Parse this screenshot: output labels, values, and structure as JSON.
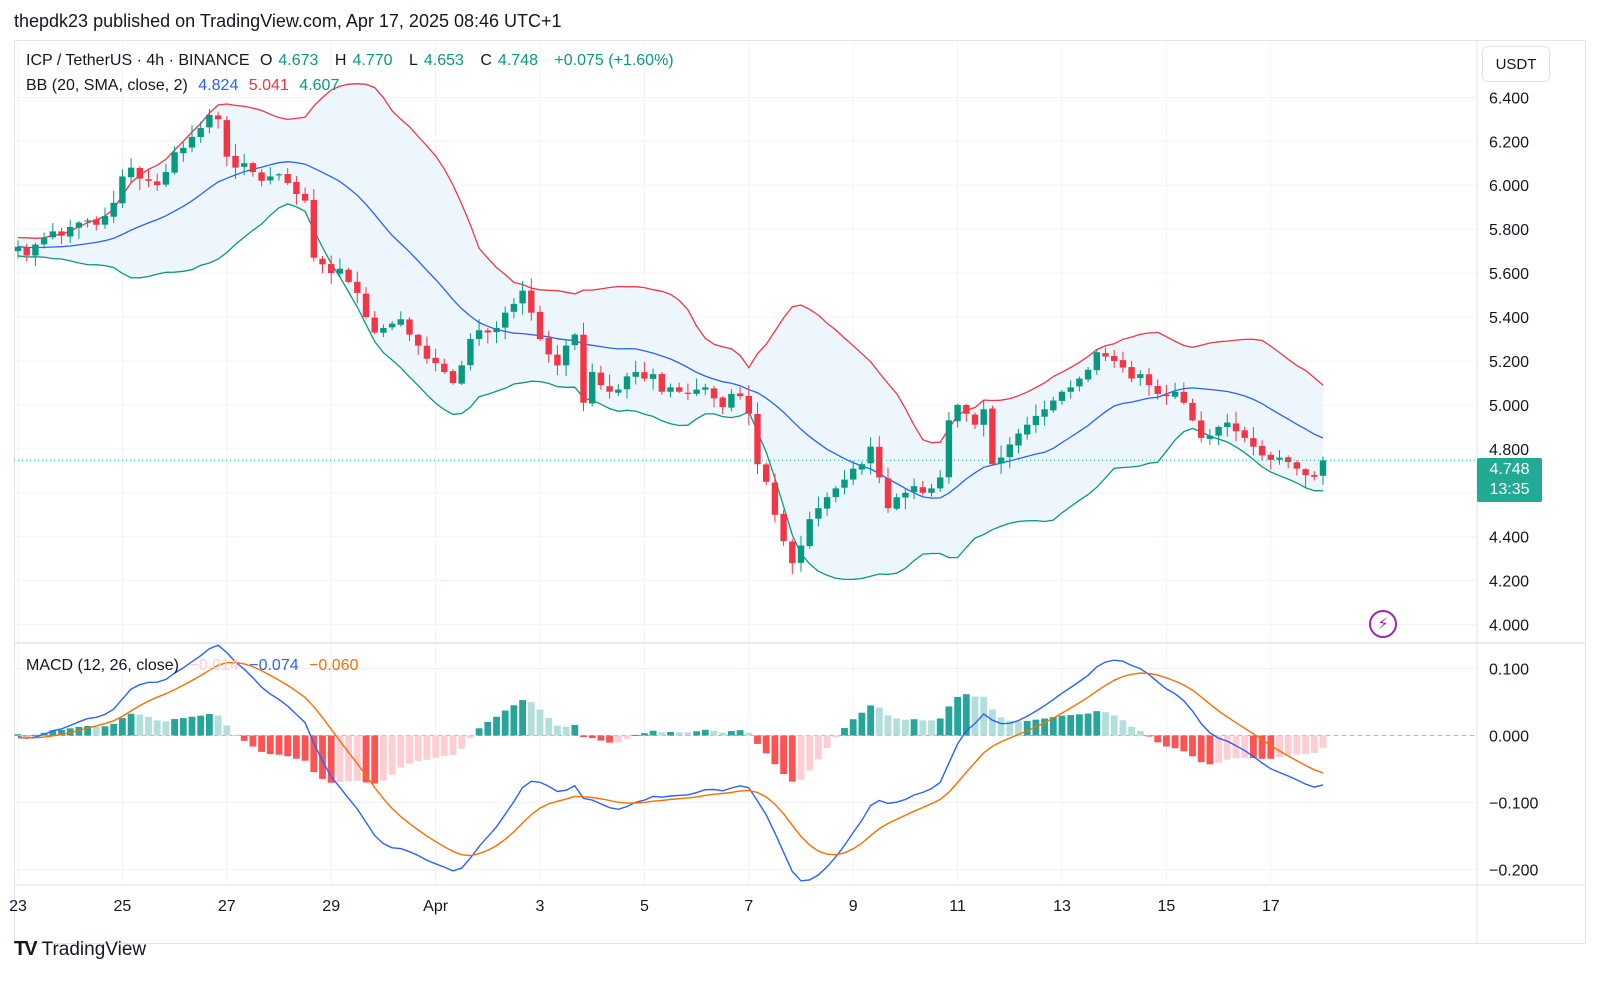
{
  "header": {
    "credit": "thepdk23 published on TradingView.com, Apr 17, 2025 08:46 UTC+1"
  },
  "legend": {
    "symbol": "ICP / TetherUS · 4h · BINANCE",
    "open_label": "O",
    "open": "4.673",
    "high_label": "H",
    "high": "4.770",
    "low_label": "L",
    "low": "4.653",
    "close_label": "C",
    "close": "4.748",
    "change": "+0.075 (+1.60%)",
    "bb_title": "BB (20, SMA, close, 2)",
    "bb_basis": "4.824",
    "bb_upper": "5.041",
    "bb_lower": "4.607",
    "macd_title": "MACD (12, 26, close)",
    "macd_hist": "−0.014",
    "macd_line": "−0.074",
    "macd_signal": "−0.060"
  },
  "price_scale": {
    "unit": "USDT",
    "last_price": "4.748",
    "countdown": "13:35"
  },
  "footer": {
    "brand": "TradingView",
    "logo_mark": "TV"
  },
  "icons": {
    "alert": "lightning-bolt-icon"
  },
  "colors": {
    "up": "#089981",
    "down": "#f23645",
    "bb_basis": "#2962ff",
    "bb_upper": "#f23645",
    "bb_lower": "#089981",
    "bb_fill": "#eef6fd",
    "macd": "#2962ff",
    "signal": "#ff6d00",
    "hist_up": "#26a69a",
    "hist_up_weak": "#b2dfdb",
    "hist_down": "#ff5252",
    "hist_down_weak": "#ffcdd2",
    "last_price": "#22ab94"
  },
  "chart_data": {
    "type": "candlestick",
    "symbol": "ICP / TetherUS",
    "interval": "4h",
    "exchange": "BINANCE",
    "x_ticks": [
      {
        "label": "23",
        "t": 0
      },
      {
        "label": "25",
        "t": 12
      },
      {
        "label": "27",
        "t": 24
      },
      {
        "label": "29",
        "t": 36
      },
      {
        "label": "Apr",
        "t": 48
      },
      {
        "label": "3",
        "t": 60
      },
      {
        "label": "5",
        "t": 72
      },
      {
        "label": "7",
        "t": 84
      },
      {
        "label": "9",
        "t": 96
      },
      {
        "label": "11",
        "t": 108
      },
      {
        "label": "13",
        "t": 120
      },
      {
        "label": "15",
        "t": 132
      },
      {
        "label": "17",
        "t": 144
      }
    ],
    "price_axis": {
      "ylim": [
        3.93,
        6.57
      ],
      "ticks": [
        "6.400",
        "6.200",
        "6.000",
        "5.800",
        "5.600",
        "5.400",
        "5.200",
        "5.000",
        "4.800",
        "4.600",
        "4.400",
        "4.200",
        "4.000"
      ]
    },
    "macd_axis": {
      "ylim": [
        -0.22,
        0.135
      ],
      "ticks": [
        "0.100",
        "0.000",
        "−0.100",
        "−0.200"
      ]
    },
    "close": [
      5.72,
      5.68,
      5.73,
      5.76,
      5.79,
      5.77,
      5.81,
      5.83,
      5.84,
      5.82,
      5.86,
      5.92,
      6.04,
      6.08,
      6.03,
      6.02,
      6.0,
      6.06,
      6.15,
      6.17,
      6.22,
      6.26,
      6.32,
      6.3,
      6.13,
      6.08,
      6.1,
      6.06,
      6.02,
      6.04,
      6.05,
      6.01,
      5.96,
      5.93,
      5.67,
      5.64,
      5.6,
      5.62,
      5.56,
      5.51,
      5.4,
      5.33,
      5.35,
      5.37,
      5.39,
      5.32,
      5.27,
      5.21,
      5.19,
      5.15,
      5.1,
      5.18,
      5.3,
      5.34,
      5.33,
      5.35,
      5.42,
      5.46,
      5.52,
      5.42,
      5.3,
      5.23,
      5.18,
      5.27,
      5.32,
      5.01,
      5.15,
      5.09,
      5.06,
      5.07,
      5.13,
      5.15,
      5.12,
      5.14,
      5.06,
      5.08,
      5.06,
      5.05,
      5.07,
      5.08,
      5.03,
      4.99,
      5.05,
      5.04,
      4.96,
      4.73,
      4.65,
      4.5,
      4.38,
      4.28,
      4.36,
      4.48,
      4.53,
      4.58,
      4.62,
      4.66,
      4.71,
      4.73,
      4.81,
      4.67,
      4.53,
      4.58,
      4.6,
      4.63,
      4.6,
      4.62,
      4.67,
      4.93,
      5.0,
      4.96,
      4.91,
      4.98,
      4.73,
      4.76,
      4.82,
      4.87,
      4.91,
      4.95,
      4.98,
      5.02,
      5.06,
      5.08,
      5.12,
      5.16,
      5.24,
      5.22,
      5.2,
      5.17,
      5.12,
      5.14,
      5.09,
      5.05,
      5.04,
      5.06,
      5.01,
      4.93,
      4.85,
      4.86,
      4.9,
      4.92,
      4.88,
      4.85,
      4.81,
      4.77,
      4.75,
      4.76,
      4.74,
      4.71,
      4.68,
      4.673,
      4.748
    ],
    "bollinger": {
      "length": 20,
      "ma": "SMA",
      "source": "close",
      "mult": 2,
      "last": {
        "basis": 4.824,
        "upper": 5.041,
        "lower": 4.607
      }
    },
    "macd": {
      "fast": 12,
      "slow": 26,
      "source": "close",
      "last": {
        "histogram": -0.014,
        "macd": -0.074,
        "signal": -0.06
      }
    },
    "last_price": 4.748,
    "grid": true,
    "legend_position": "top-left"
  }
}
